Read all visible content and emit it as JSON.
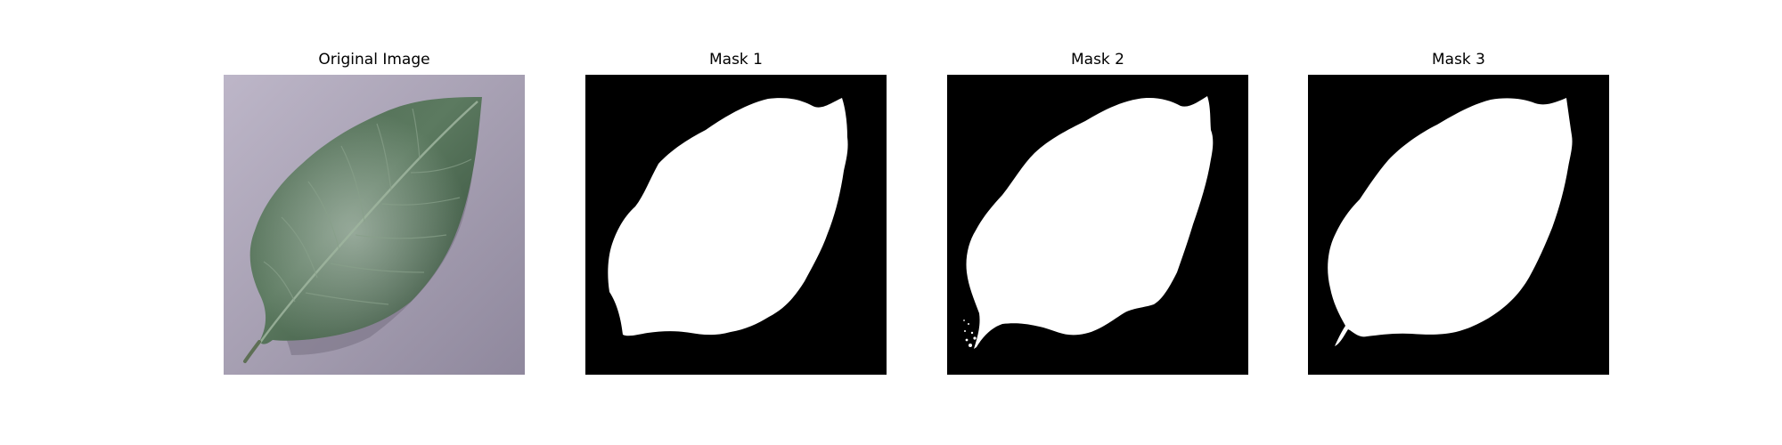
{
  "figure": {
    "panels": [
      {
        "title": "Original Image",
        "kind": "photo",
        "subject": "leaf"
      },
      {
        "title": "Mask 1",
        "kind": "mask"
      },
      {
        "title": "Mask 2",
        "kind": "mask"
      },
      {
        "title": "Mask 3",
        "kind": "mask"
      }
    ]
  },
  "colors": {
    "background": "#ffffff",
    "mask_background": "#000000",
    "mask_foreground": "#ffffff",
    "leaf_dark": "#3f5a44",
    "leaf_light": "#6f8f72",
    "surface": "#a7a1b2"
  }
}
